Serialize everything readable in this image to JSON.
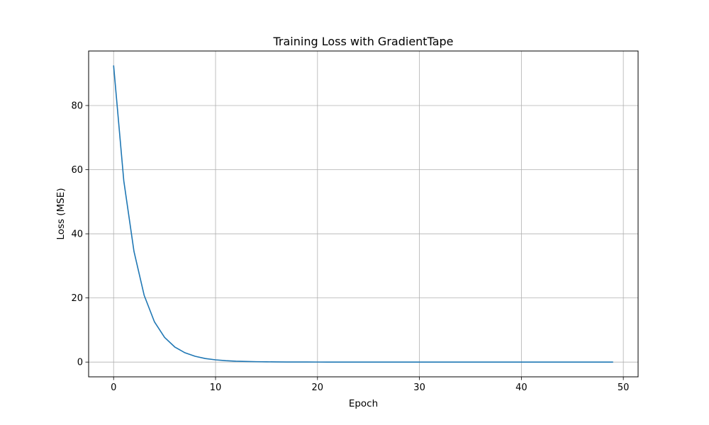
{
  "chart_data": {
    "type": "line",
    "title": "Training Loss with GradientTape",
    "xlabel": "Epoch",
    "ylabel": "Loss (MSE)",
    "xlim": [
      -2.45,
      51.45
    ],
    "ylim": [
      -4.6,
      97.0
    ],
    "xticks": [
      0,
      10,
      20,
      30,
      40,
      50
    ],
    "yticks": [
      0,
      20,
      40,
      60,
      80
    ],
    "grid": true,
    "series": [
      {
        "color": "#1f77b4",
        "x": [
          0,
          1,
          2,
          3,
          4,
          5,
          6,
          7,
          8,
          9,
          10,
          11,
          12,
          13,
          14,
          15,
          16,
          17,
          18,
          19,
          20,
          21,
          22,
          23,
          24,
          25,
          26,
          27,
          28,
          29,
          30,
          31,
          32,
          33,
          34,
          35,
          36,
          37,
          38,
          39,
          40,
          41,
          42,
          43,
          44,
          45,
          46,
          47,
          48,
          49
        ],
        "y": [
          92.5,
          56.5,
          34.5,
          20.8,
          12.6,
          7.7,
          4.7,
          2.9,
          1.8,
          1.1,
          0.7,
          0.45,
          0.28,
          0.18,
          0.12,
          0.08,
          0.05,
          0.03,
          0.02,
          0.015,
          0.01,
          0.008,
          0.006,
          0.005,
          0.004,
          0.003,
          0.003,
          0.002,
          0.002,
          0.002,
          0.001,
          0.001,
          0.001,
          0.001,
          0.001,
          0.001,
          0.001,
          0.001,
          0.001,
          0.001,
          0.001,
          0.001,
          0.001,
          0.001,
          0.001,
          0.001,
          0.001,
          0.001,
          0.001,
          0.001
        ]
      }
    ]
  }
}
